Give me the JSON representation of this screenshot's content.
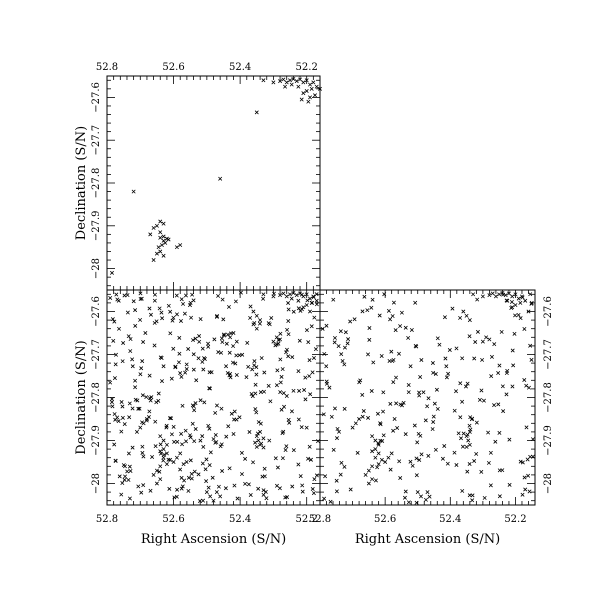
{
  "chart_data": [
    {
      "type": "scatter",
      "panel": "top-left",
      "marker": "x",
      "xlim": [
        52.8,
        52.16
      ],
      "ylim": [
        -28.05,
        -27.55
      ],
      "x_ticks": [
        "52.8",
        "52.6",
        "52.4",
        "52.2"
      ],
      "y_ticks": [
        "-28",
        "-27.9",
        "-27.8",
        "-27.7",
        "-27.6"
      ],
      "xlabel": "",
      "ylabel": "Declination (S/N)",
      "x_tick_side": "top",
      "y_tick_side": "left",
      "points": [
        [
          52.2,
          -27.56
        ],
        [
          52.21,
          -27.565
        ],
        [
          52.22,
          -27.558
        ],
        [
          52.23,
          -27.562
        ],
        [
          52.24,
          -27.557
        ],
        [
          52.25,
          -27.56
        ],
        [
          52.26,
          -27.565
        ],
        [
          52.27,
          -27.558
        ],
        [
          52.28,
          -27.562
        ],
        [
          52.19,
          -27.57
        ],
        [
          52.18,
          -27.565
        ],
        [
          52.17,
          -27.575
        ],
        [
          52.185,
          -27.58
        ],
        [
          52.2,
          -27.585
        ],
        [
          52.21,
          -27.59
        ],
        [
          52.19,
          -27.6
        ],
        [
          52.195,
          -27.61
        ],
        [
          52.175,
          -27.595
        ],
        [
          52.225,
          -27.575
        ],
        [
          52.245,
          -27.57
        ],
        [
          52.265,
          -27.575
        ],
        [
          52.215,
          -27.605
        ],
        [
          52.16,
          -27.58
        ],
        [
          52.3,
          -27.565
        ],
        [
          52.33,
          -27.56
        ],
        [
          52.35,
          -27.635
        ],
        [
          52.46,
          -27.79
        ],
        [
          52.72,
          -27.82
        ],
        [
          52.64,
          -27.89
        ],
        [
          52.63,
          -27.895
        ],
        [
          52.65,
          -27.9
        ],
        [
          52.64,
          -27.915
        ],
        [
          52.63,
          -27.925
        ],
        [
          52.62,
          -27.93
        ],
        [
          52.63,
          -27.935
        ],
        [
          52.64,
          -27.928
        ],
        [
          52.625,
          -27.94
        ],
        [
          52.635,
          -27.945
        ],
        [
          52.64,
          -27.96
        ],
        [
          52.65,
          -27.965
        ],
        [
          52.63,
          -27.97
        ],
        [
          52.66,
          -27.98
        ],
        [
          52.58,
          -27.945
        ],
        [
          52.59,
          -27.95
        ],
        [
          52.67,
          -27.92
        ],
        [
          52.66,
          -27.905
        ],
        [
          52.645,
          -27.95
        ],
        [
          52.615,
          -27.932
        ],
        [
          52.785,
          -28.01
        ]
      ]
    },
    {
      "type": "scatter",
      "panel": "bottom-left",
      "marker": "x",
      "xlim": [
        52.8,
        52.16
      ],
      "ylim": [
        -28.05,
        -27.55
      ],
      "x_ticks": [
        "52.8",
        "52.6",
        "52.4",
        "52.2"
      ],
      "y_ticks": [
        "-28",
        "-27.9",
        "-27.8",
        "-27.7",
        "-27.6"
      ],
      "xlabel": "Right Ascension (S/N)",
      "ylabel": "Declination (S/N)",
      "x_tick_side": "bottom",
      "y_tick_side": "left",
      "field_points": 420,
      "points": [
        [
          52.2,
          -27.56
        ],
        [
          52.21,
          -27.565
        ],
        [
          52.22,
          -27.558
        ],
        [
          52.23,
          -27.562
        ],
        [
          52.24,
          -27.557
        ],
        [
          52.25,
          -27.56
        ],
        [
          52.26,
          -27.565
        ],
        [
          52.27,
          -27.558
        ],
        [
          52.28,
          -27.562
        ],
        [
          52.19,
          -27.57
        ],
        [
          52.18,
          -27.565
        ],
        [
          52.17,
          -27.575
        ],
        [
          52.185,
          -27.58
        ],
        [
          52.2,
          -27.585
        ],
        [
          52.21,
          -27.59
        ],
        [
          52.19,
          -27.6
        ],
        [
          52.225,
          -27.575
        ],
        [
          52.245,
          -27.57
        ],
        [
          52.3,
          -27.565
        ],
        [
          52.33,
          -27.56
        ],
        [
          52.36,
          -27.6
        ],
        [
          52.35,
          -27.61
        ],
        [
          52.34,
          -27.62
        ],
        [
          52.37,
          -27.615
        ],
        [
          52.36,
          -27.63
        ],
        [
          52.35,
          -27.64
        ],
        [
          52.29,
          -27.66
        ],
        [
          52.28,
          -27.665
        ],
        [
          52.3,
          -27.67
        ],
        [
          52.285,
          -27.675
        ],
        [
          52.42,
          -27.65
        ],
        [
          52.43,
          -27.66
        ],
        [
          52.41,
          -27.67
        ],
        [
          52.44,
          -27.675
        ],
        [
          52.34,
          -27.88
        ],
        [
          52.35,
          -27.89
        ],
        [
          52.345,
          -27.9
        ],
        [
          52.34,
          -27.91
        ],
        [
          52.35,
          -27.915
        ],
        [
          52.33,
          -27.895
        ],
        [
          52.355,
          -27.905
        ],
        [
          52.64,
          -27.89
        ],
        [
          52.63,
          -27.9
        ],
        [
          52.62,
          -27.91
        ],
        [
          52.63,
          -27.92
        ],
        [
          52.64,
          -27.925
        ],
        [
          52.62,
          -27.93
        ],
        [
          52.63,
          -27.94
        ],
        [
          52.61,
          -27.945
        ],
        [
          52.6,
          -27.95
        ],
        [
          52.62,
          -27.955
        ],
        [
          52.64,
          -27.96
        ],
        [
          52.65,
          -27.97
        ],
        [
          52.66,
          -27.98
        ],
        [
          52.64,
          -27.99
        ],
        [
          52.65,
          -28.0
        ],
        [
          52.58,
          -27.93
        ],
        [
          52.59,
          -27.94
        ],
        [
          52.57,
          -27.955
        ],
        [
          52.68,
          -27.85
        ],
        [
          52.69,
          -27.86
        ],
        [
          52.7,
          -27.87
        ],
        [
          52.71,
          -27.88
        ],
        [
          52.5,
          -28.02
        ],
        [
          52.49,
          -28.03
        ],
        [
          52.47,
          -28.02
        ],
        [
          52.48,
          -28.04
        ],
        [
          52.46,
          -28.03
        ]
      ]
    },
    {
      "type": "scatter",
      "panel": "bottom-right",
      "marker": "x",
      "xlim": [
        52.8,
        52.14
      ],
      "ylim": [
        -28.05,
        -27.55
      ],
      "x_ticks": [
        "52.8",
        "52.6",
        "52.4",
        "52.2"
      ],
      "y_ticks": [
        "-28",
        "-27.9",
        "-27.8",
        "-27.7",
        "-27.6"
      ],
      "xlabel": "Right Ascension (S/N)",
      "ylabel": "",
      "x_tick_side": "bottom",
      "y_tick_side": "right",
      "field_points": 260,
      "points": [
        [
          52.2,
          -27.56
        ],
        [
          52.21,
          -27.565
        ],
        [
          52.22,
          -27.558
        ],
        [
          52.23,
          -27.562
        ],
        [
          52.24,
          -27.557
        ],
        [
          52.25,
          -27.56
        ],
        [
          52.26,
          -27.565
        ],
        [
          52.27,
          -27.558
        ],
        [
          52.28,
          -27.562
        ],
        [
          52.19,
          -27.57
        ],
        [
          52.18,
          -27.565
        ],
        [
          52.17,
          -27.575
        ],
        [
          52.185,
          -27.58
        ],
        [
          52.2,
          -27.585
        ],
        [
          52.21,
          -27.59
        ],
        [
          52.16,
          -27.6
        ],
        [
          52.15,
          -27.58
        ],
        [
          52.225,
          -27.575
        ],
        [
          52.3,
          -27.565
        ],
        [
          52.33,
          -27.56
        ],
        [
          52.36,
          -27.6
        ],
        [
          52.35,
          -27.61
        ],
        [
          52.34,
          -27.62
        ],
        [
          52.37,
          -27.615
        ],
        [
          52.29,
          -27.66
        ],
        [
          52.28,
          -27.665
        ],
        [
          52.3,
          -27.67
        ],
        [
          52.34,
          -27.88
        ],
        [
          52.35,
          -27.89
        ],
        [
          52.345,
          -27.9
        ],
        [
          52.34,
          -27.91
        ],
        [
          52.35,
          -27.915
        ],
        [
          52.64,
          -27.89
        ],
        [
          52.63,
          -27.9
        ],
        [
          52.62,
          -27.91
        ],
        [
          52.63,
          -27.92
        ],
        [
          52.64,
          -27.925
        ],
        [
          52.62,
          -27.93
        ],
        [
          52.63,
          -27.94
        ],
        [
          52.61,
          -27.945
        ],
        [
          52.6,
          -27.95
        ],
        [
          52.62,
          -27.955
        ],
        [
          52.64,
          -27.96
        ],
        [
          52.65,
          -27.97
        ],
        [
          52.66,
          -27.98
        ],
        [
          52.64,
          -27.99
        ],
        [
          52.65,
          -28.0
        ],
        [
          52.58,
          -27.93
        ],
        [
          52.59,
          -27.94
        ],
        [
          52.68,
          -27.85
        ],
        [
          52.69,
          -27.86
        ],
        [
          52.7,
          -27.87
        ],
        [
          52.5,
          -28.02
        ],
        [
          52.49,
          -28.03
        ],
        [
          52.47,
          -28.02
        ]
      ]
    }
  ]
}
